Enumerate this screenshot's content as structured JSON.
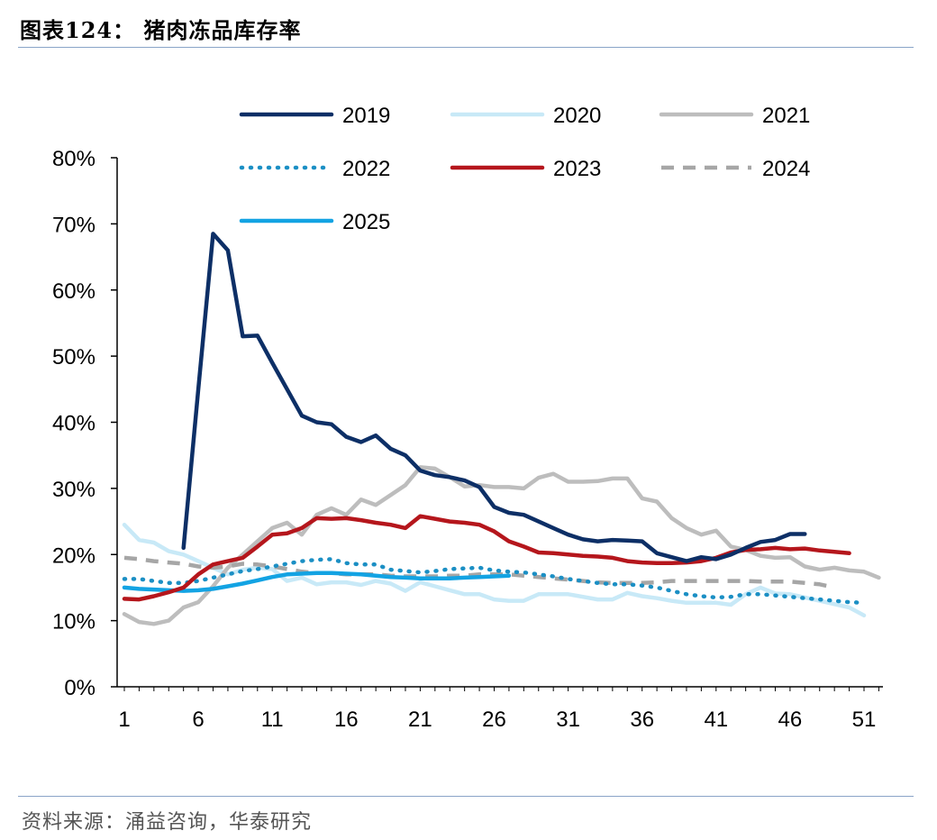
{
  "header": {
    "title": "图表124：  猪肉冻品库存率"
  },
  "footer": {
    "source": "资料来源：涌益咨询，华泰研究"
  },
  "chart_data": {
    "type": "line",
    "title": "",
    "xlabel": "",
    "ylabel": "",
    "xlim": [
      1,
      52
    ],
    "ylim": [
      0,
      0.8
    ],
    "x_ticks": [
      "1",
      "6",
      "11",
      "16",
      "21",
      "26",
      "31",
      "36",
      "41",
      "46",
      "51"
    ],
    "y_ticks": [
      "0%",
      "10%",
      "20%",
      "30%",
      "40%",
      "50%",
      "60%",
      "70%",
      "80%"
    ],
    "legend_position": "top",
    "grid": false,
    "series": [
      {
        "name": "2019",
        "color": "#0d2f66",
        "dash": "solid",
        "start": 5,
        "values": [
          0.21,
          0.45,
          0.685,
          0.66,
          0.53,
          0.531,
          0.49,
          0.45,
          0.41,
          0.4,
          0.397,
          0.378,
          0.37,
          0.38,
          0.36,
          0.35,
          0.327,
          0.32,
          0.317,
          0.312,
          0.302,
          0.272,
          0.263,
          0.26,
          0.25,
          0.24,
          0.23,
          0.223,
          0.22,
          0.222,
          0.221,
          0.22,
          0.202,
          0.196,
          0.19,
          0.196,
          0.193,
          0.2,
          0.21,
          0.219,
          0.222,
          0.231,
          0.231
        ]
      },
      {
        "name": "2020",
        "color": "#c8e9f7",
        "dash": "solid",
        "start": 1,
        "values": [
          0.245,
          0.222,
          0.218,
          0.205,
          0.2,
          0.19,
          0.18,
          0.17,
          0.177,
          0.18,
          0.178,
          0.16,
          0.165,
          0.155,
          0.158,
          0.158,
          0.154,
          0.16,
          0.156,
          0.145,
          0.158,
          0.152,
          0.146,
          0.14,
          0.14,
          0.132,
          0.13,
          0.13,
          0.14,
          0.14,
          0.14,
          0.136,
          0.132,
          0.132,
          0.142,
          0.137,
          0.134,
          0.13,
          0.127,
          0.127,
          0.127,
          0.124,
          0.14,
          0.15,
          0.141,
          0.14,
          0.135,
          0.13,
          0.125,
          0.12,
          0.108
        ]
      },
      {
        "name": "2021",
        "color": "#bdbdbd",
        "dash": "solid",
        "start": 1,
        "values": [
          0.11,
          0.098,
          0.095,
          0.1,
          0.12,
          0.128,
          0.152,
          0.18,
          0.2,
          0.22,
          0.24,
          0.248,
          0.23,
          0.26,
          0.27,
          0.26,
          0.283,
          0.275,
          0.29,
          0.305,
          0.332,
          0.33,
          0.317,
          0.303,
          0.305,
          0.302,
          0.302,
          0.3,
          0.316,
          0.322,
          0.31,
          0.31,
          0.311,
          0.315,
          0.315,
          0.285,
          0.28,
          0.255,
          0.24,
          0.23,
          0.236,
          0.212,
          0.207,
          0.198,
          0.195,
          0.196,
          0.182,
          0.177,
          0.18,
          0.176,
          0.174,
          0.165
        ]
      },
      {
        "name": "2022",
        "color": "#1b8fc4",
        "dash": "dot",
        "start": 1,
        "values": [
          0.163,
          0.163,
          0.16,
          0.157,
          0.157,
          0.16,
          0.165,
          0.17,
          0.175,
          0.178,
          0.182,
          0.186,
          0.19,
          0.192,
          0.193,
          0.187,
          0.185,
          0.185,
          0.177,
          0.175,
          0.173,
          0.175,
          0.178,
          0.179,
          0.18,
          0.176,
          0.174,
          0.173,
          0.17,
          0.167,
          0.163,
          0.16,
          0.157,
          0.155,
          0.155,
          0.153,
          0.15,
          0.145,
          0.14,
          0.137,
          0.135,
          0.136,
          0.14,
          0.14,
          0.138,
          0.136,
          0.134,
          0.132,
          0.13,
          0.128,
          0.127
        ]
      },
      {
        "name": "2023",
        "color": "#b5161c",
        "dash": "solid",
        "start": 1,
        "values": [
          0.133,
          0.132,
          0.137,
          0.143,
          0.15,
          0.17,
          0.185,
          0.19,
          0.195,
          0.212,
          0.23,
          0.232,
          0.24,
          0.255,
          0.254,
          0.255,
          0.252,
          0.248,
          0.245,
          0.24,
          0.258,
          0.254,
          0.25,
          0.248,
          0.245,
          0.235,
          0.22,
          0.212,
          0.203,
          0.202,
          0.2,
          0.198,
          0.197,
          0.195,
          0.19,
          0.188,
          0.187,
          0.187,
          0.188,
          0.19,
          0.195,
          0.203,
          0.207,
          0.208,
          0.21,
          0.208,
          0.209,
          0.206,
          0.204,
          0.202
        ]
      },
      {
        "name": "2024",
        "color": "#a6a6a6",
        "dash": "dash",
        "start": 1,
        "values": [
          0.195,
          0.193,
          0.19,
          0.188,
          0.186,
          0.182,
          0.18,
          0.182,
          0.186,
          0.185,
          0.182,
          0.178,
          0.174,
          0.172,
          0.172,
          0.17,
          0.17,
          0.17,
          0.168,
          0.167,
          0.167,
          0.167,
          0.168,
          0.168,
          0.17,
          0.17,
          0.17,
          0.168,
          0.166,
          0.164,
          0.162,
          0.16,
          0.158,
          0.157,
          0.157,
          0.157,
          0.158,
          0.16,
          0.16,
          0.16,
          0.16,
          0.16,
          0.16,
          0.159,
          0.159,
          0.159,
          0.157,
          0.155,
          0.15
        ]
      },
      {
        "name": "2025",
        "color": "#13a3e3",
        "dash": "solid",
        "start": 1,
        "values": [
          0.15,
          0.148,
          0.147,
          0.146,
          0.145,
          0.146,
          0.148,
          0.152,
          0.156,
          0.161,
          0.166,
          0.17,
          0.171,
          0.172,
          0.172,
          0.171,
          0.17,
          0.168,
          0.166,
          0.165,
          0.164,
          0.164,
          0.164,
          0.165,
          0.166,
          0.167,
          0.168
        ]
      }
    ]
  }
}
